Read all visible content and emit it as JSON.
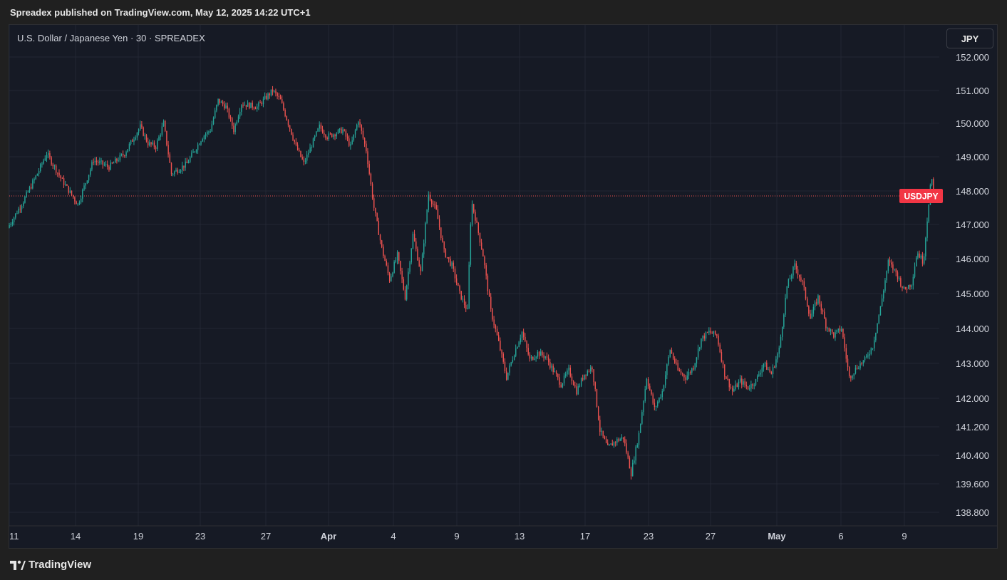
{
  "header": {
    "published_text": "Spreadex published on TradingView.com, May 12, 2025 14:22 UTC+1"
  },
  "chart_header": {
    "symbol_title": "U.S. Dollar / Japanese Yen · 30 · SPREADEX",
    "currency_button": "JPY"
  },
  "footer": {
    "brand": "TradingView"
  },
  "colors": {
    "up": "#26a69a",
    "down": "#ef5350",
    "tag": "#f23645",
    "grid": "#232733",
    "background": "#161a25"
  },
  "chart_data": {
    "type": "candlestick",
    "title": "U.S. Dollar / Japanese Yen · 30 · SPREADEX",
    "series_name": "USDJPY",
    "last_price": 147.85,
    "last_price_label": "USDJPY",
    "y_ticks": [
      {
        "value": 152.0,
        "label": "152.000"
      },
      {
        "value": 151.0,
        "label": "151.000"
      },
      {
        "value": 150.0,
        "label": "150.000"
      },
      {
        "value": 149.0,
        "label": "149.000"
      },
      {
        "value": 148.0,
        "label": "148.000"
      },
      {
        "value": 147.0,
        "label": "147.000"
      },
      {
        "value": 146.0,
        "label": "146.000"
      },
      {
        "value": 145.0,
        "label": "145.000"
      },
      {
        "value": 144.0,
        "label": "144.000"
      },
      {
        "value": 143.0,
        "label": "143.000"
      },
      {
        "value": 142.0,
        "label": "142.000"
      },
      {
        "value": 141.2,
        "label": "141.200"
      },
      {
        "value": 140.4,
        "label": "140.400"
      },
      {
        "value": 139.6,
        "label": "139.600"
      },
      {
        "value": 138.8,
        "label": "138.800"
      }
    ],
    "x_ticks": [
      {
        "label": "11",
        "bold": false
      },
      {
        "label": "14",
        "bold": false
      },
      {
        "label": "19",
        "bold": false
      },
      {
        "label": "23",
        "bold": false
      },
      {
        "label": "27",
        "bold": false
      },
      {
        "label": "Apr",
        "bold": true
      },
      {
        "label": "4",
        "bold": false
      },
      {
        "label": "9",
        "bold": false
      },
      {
        "label": "13",
        "bold": false
      },
      {
        "label": "17",
        "bold": false
      },
      {
        "label": "23",
        "bold": false
      },
      {
        "label": "27",
        "bold": false
      },
      {
        "label": "May",
        "bold": true
      },
      {
        "label": "6",
        "bold": false
      },
      {
        "label": "9",
        "bold": false
      }
    ],
    "price_path": [
      [
        0,
        146.9
      ],
      [
        2,
        147.7
      ],
      [
        4,
        148.6
      ],
      [
        5,
        149.1
      ],
      [
        7,
        148.3
      ],
      [
        9,
        147.6
      ],
      [
        11,
        148.9
      ],
      [
        13,
        148.7
      ],
      [
        15,
        149.1
      ],
      [
        17,
        149.9
      ],
      [
        18,
        149.4
      ],
      [
        19,
        149.3
      ],
      [
        20,
        150.0
      ],
      [
        21,
        148.5
      ],
      [
        23,
        148.8
      ],
      [
        24,
        149.2
      ],
      [
        25,
        149.6
      ],
      [
        26,
        149.8
      ],
      [
        27,
        150.7
      ],
      [
        28,
        150.5
      ],
      [
        29,
        149.8
      ],
      [
        30,
        150.6
      ],
      [
        32,
        150.5
      ],
      [
        34,
        151.0
      ],
      [
        35,
        150.7
      ],
      [
        37,
        149.3
      ],
      [
        38,
        148.8
      ],
      [
        40,
        149.9
      ],
      [
        41,
        149.6
      ],
      [
        43,
        149.8
      ],
      [
        44,
        149.3
      ],
      [
        45,
        150.1
      ],
      [
        46,
        149.2
      ],
      [
        47,
        147.5
      ],
      [
        48,
        146.3
      ],
      [
        49,
        145.4
      ],
      [
        50,
        146.1
      ],
      [
        51,
        144.9
      ],
      [
        52,
        146.7
      ],
      [
        53,
        145.6
      ],
      [
        54,
        147.9
      ],
      [
        55,
        147.4
      ],
      [
        56,
        146.2
      ],
      [
        57,
        145.8
      ],
      [
        58,
        145.0
      ],
      [
        59,
        144.5
      ],
      [
        59.5,
        147.7
      ],
      [
        60,
        147.2
      ],
      [
        61,
        146.1
      ],
      [
        62,
        144.5
      ],
      [
        63,
        143.6
      ],
      [
        64,
        142.6
      ],
      [
        65,
        143.3
      ],
      [
        66,
        143.9
      ],
      [
        67,
        143.1
      ],
      [
        68,
        143.3
      ],
      [
        69,
        143.2
      ],
      [
        70,
        142.8
      ],
      [
        71,
        142.4
      ],
      [
        72,
        142.8
      ],
      [
        73,
        142.2
      ],
      [
        74,
        142.7
      ],
      [
        75,
        142.9
      ],
      [
        76,
        141.1
      ],
      [
        77,
        140.6
      ],
      [
        78,
        140.8
      ],
      [
        79,
        140.9
      ],
      [
        80,
        139.9
      ],
      [
        81,
        141.0
      ],
      [
        82,
        142.6
      ],
      [
        83,
        141.7
      ],
      [
        84,
        142.2
      ],
      [
        85,
        143.4
      ],
      [
        86,
        142.8
      ],
      [
        87,
        142.6
      ],
      [
        88,
        142.9
      ],
      [
        89,
        143.7
      ],
      [
        90,
        143.9
      ],
      [
        91,
        143.8
      ],
      [
        92,
        142.7
      ],
      [
        93,
        142.2
      ],
      [
        94,
        142.5
      ],
      [
        95,
        142.3
      ],
      [
        96,
        142.5
      ],
      [
        97,
        143.0
      ],
      [
        98,
        142.7
      ],
      [
        99,
        143.4
      ],
      [
        100,
        145.2
      ],
      [
        101,
        145.8
      ],
      [
        102,
        145.3
      ],
      [
        103,
        144.3
      ],
      [
        104,
        144.9
      ],
      [
        105,
        144.1
      ],
      [
        106,
        143.8
      ],
      [
        107,
        144.0
      ],
      [
        108,
        142.6
      ],
      [
        109,
        142.9
      ],
      [
        110,
        143.1
      ],
      [
        111,
        143.5
      ],
      [
        112,
        144.6
      ],
      [
        113,
        145.9
      ],
      [
        114,
        145.6
      ],
      [
        115,
        145.1
      ],
      [
        116,
        145.3
      ],
      [
        116.7,
        146.2
      ],
      [
        117.5,
        145.9
      ],
      [
        118.5,
        148.4
      ],
      [
        118.9,
        147.85
      ]
    ]
  }
}
